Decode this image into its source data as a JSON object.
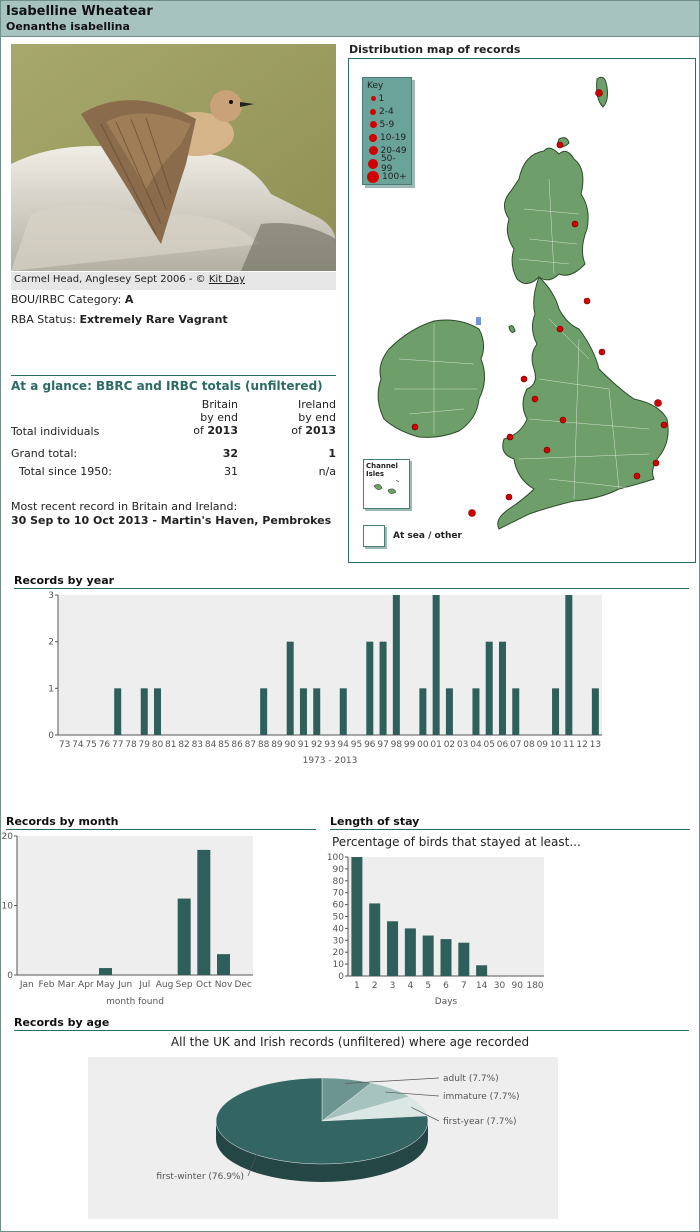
{
  "species": {
    "common_name": "Isabelline Wheatear",
    "latin_name": "Oenanthe isabellina"
  },
  "photo": {
    "caption": "Carmel Head, Anglesey Sept 2006 - © ",
    "credit_link": "Kit Day"
  },
  "category": {
    "label": "BOU/IRBC Category: ",
    "value": "A"
  },
  "rba_status": {
    "label": "RBA Status: ",
    "value": "Extremely Rare Vagrant"
  },
  "glance": {
    "title": "At a glance: BBRC and IRBC totals (unfiltered)",
    "row_label": "Total individuals",
    "britain_head1": "Britain",
    "britain_head2": "by end",
    "britain_head3": "of ",
    "britain_year": "2013",
    "ireland_head1": "Ireland",
    "ireland_head2": "by end",
    "ireland_head3": "of ",
    "ireland_year": "2013",
    "grand_total_label": "Grand total:",
    "grand_total_britain": "32",
    "grand_total_ireland": "1",
    "since1950_label": "Total since 1950:",
    "since1950_britain": "31",
    "since1950_ireland": "n/a",
    "recent_label": "Most recent record in Britain and Ireland:",
    "recent_value": "30 Sep to 10 Oct 2013 - Martin's Haven, Pembrokes"
  },
  "map": {
    "title": "Distribution map of records",
    "key_title": "Key",
    "key_items": [
      "1",
      "2-4",
      "5-9",
      "10-19",
      "20-49",
      "50-99",
      "100+"
    ],
    "channel_label1": "Channel",
    "channel_label2": "Isles",
    "at_sea_label": "At sea / other",
    "land_color": "#6e9e6a",
    "dot_color": "#d10000"
  },
  "chart_data": [
    {
      "type": "bar",
      "title": "Records by year",
      "xlabel": "1973 - 2013",
      "categories": [
        "73",
        "74",
        "75",
        "76",
        "77",
        "78",
        "79",
        "80",
        "81",
        "82",
        "83",
        "84",
        "85",
        "86",
        "87",
        "88",
        "89",
        "90",
        "91",
        "92",
        "93",
        "94",
        "95",
        "96",
        "97",
        "98",
        "99",
        "00",
        "01",
        "02",
        "03",
        "04",
        "05",
        "06",
        "07",
        "08",
        "09",
        "10",
        "11",
        "12",
        "13"
      ],
      "values": [
        0,
        0,
        0,
        0,
        1,
        0,
        1,
        1,
        0,
        0,
        0,
        0,
        0,
        0,
        0,
        1,
        0,
        2,
        1,
        1,
        0,
        1,
        0,
        2,
        2,
        3,
        0,
        1,
        3,
        1,
        0,
        1,
        2,
        2,
        1,
        0,
        0,
        1,
        3,
        0,
        1
      ],
      "ylim": [
        0,
        3
      ],
      "yticks": [
        "0",
        "1",
        "2",
        "3"
      ],
      "color": "#2f5f5b"
    },
    {
      "type": "bar",
      "title": "Records by month",
      "xlabel": "month found",
      "categories": [
        "Jan",
        "Feb",
        "Mar",
        "Apr",
        "May",
        "Jun",
        "Jul",
        "Aug",
        "Sep",
        "Oct",
        "Nov",
        "Dec"
      ],
      "values": [
        0,
        0,
        0,
        0,
        1,
        0,
        0,
        0,
        11,
        18,
        3,
        0
      ],
      "ylim": [
        0,
        20
      ],
      "yticks": [
        "0",
        "10",
        "20"
      ],
      "color": "#2f5f5b"
    },
    {
      "type": "bar",
      "title": "Length of stay",
      "subtitle": "Percentage of birds that stayed at least...",
      "xlabel": "Days",
      "categories": [
        "1",
        "2",
        "3",
        "4",
        "5",
        "6",
        "7",
        "14",
        "30",
        "90",
        "180"
      ],
      "values": [
        100,
        61,
        46,
        40,
        34,
        31,
        28,
        9,
        0,
        0,
        0
      ],
      "ylim": [
        0,
        100
      ],
      "yticks": [
        "0",
        "10",
        "20",
        "30",
        "40",
        "50",
        "60",
        "70",
        "80",
        "90",
        "100"
      ],
      "color": "#2f5f5b"
    },
    {
      "type": "pie",
      "title": "Records by age",
      "subtitle": "All the UK and Irish records (unfiltered) where age recorded",
      "slices": [
        {
          "label": "first-winter (76.9%)",
          "value": 76.9,
          "color": "#336663"
        },
        {
          "label": "adult (7.7%)",
          "value": 7.7,
          "color": "#6c9592"
        },
        {
          "label": "immature (7.7%)",
          "value": 7.7,
          "color": "#a6c3c0"
        },
        {
          "label": "first-year (7.7%)",
          "value": 7.7,
          "color": "#dbe7e5"
        }
      ]
    }
  ]
}
